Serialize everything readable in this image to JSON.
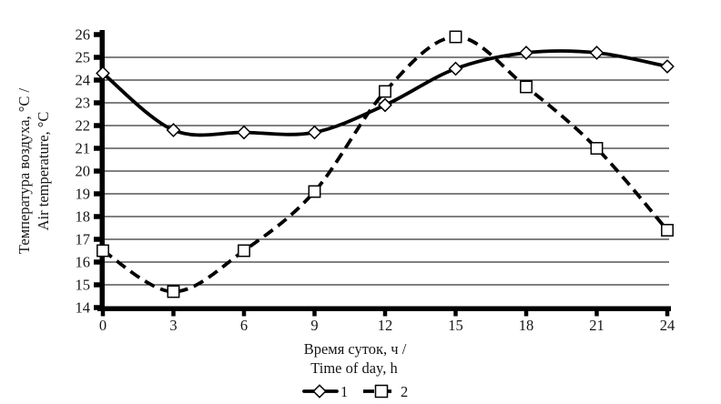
{
  "chart_data": {
    "type": "line",
    "title": "",
    "x": [
      0,
      3,
      6,
      9,
      12,
      15,
      18,
      21,
      24
    ],
    "x_ticks": [
      "0",
      "3",
      "6",
      "9",
      "12",
      "15",
      "18",
      "21",
      "24"
    ],
    "y_ticks": [
      "14",
      "15",
      "16",
      "17",
      "18",
      "19",
      "20",
      "21",
      "22",
      "23",
      "24",
      "25",
      "26"
    ],
    "grid_y_values": [
      15,
      16,
      17,
      18,
      19,
      20,
      21,
      22,
      23,
      24,
      25
    ],
    "xlim": [
      0,
      24
    ],
    "ylim": [
      14,
      26
    ],
    "xlabel_line1": "Время суток, ч /",
    "xlabel_line2": "Time of day, h",
    "ylabel_line1": "Температура воздуха, °С /",
    "ylabel_line2": "Air  temperature,  °С",
    "grid": "horizontal-only",
    "legend_position": "bottom-center",
    "line_color": "#000000",
    "marker_fill": "#ffffff",
    "series": [
      {
        "name": "1",
        "line_style": "solid",
        "marker": "diamond",
        "color": "#000000",
        "values": [
          24.3,
          21.8,
          21.7,
          21.7,
          22.9,
          24.5,
          25.2,
          25.2,
          24.6
        ]
      },
      {
        "name": "2",
        "line_style": "dashed",
        "marker": "square",
        "color": "#000000",
        "values": [
          16.5,
          14.7,
          16.5,
          19.1,
          23.5,
          25.9,
          23.7,
          21.0,
          17.4
        ]
      }
    ]
  }
}
